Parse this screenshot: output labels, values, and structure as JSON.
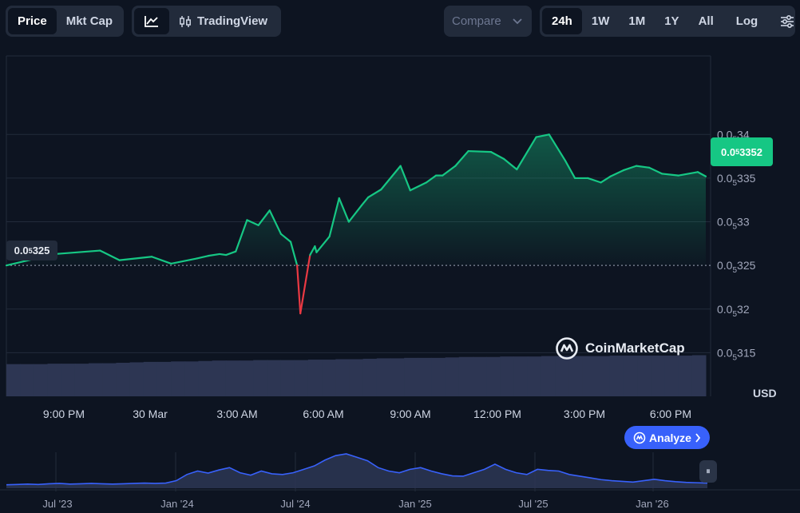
{
  "toolbar": {
    "price_label": "Price",
    "mktcap_label": "Mkt Cap",
    "tradingview_label": "TradingView",
    "compare_label": "Compare",
    "ranges": [
      "24h",
      "1W",
      "1M",
      "1Y",
      "All"
    ],
    "active_range": "24h",
    "log_label": "Log"
  },
  "current_price": {
    "prefix": "0.0",
    "sub": "5",
    "rest": "3352"
  },
  "reference_price": {
    "prefix": "0.0",
    "sub": "5",
    "rest": "325"
  },
  "currency_label": "USD",
  "watermark_text": "CoinMarketCap",
  "analyze_label": "Analyze",
  "colors": {
    "up": "#16c784",
    "down": "#ea3943",
    "accent": "#3861fb",
    "background": "#0d1421",
    "volume": "#2d3653"
  },
  "chart_data": [
    {
      "type": "area",
      "title": "",
      "xlabel": "",
      "ylabel": "USD",
      "ylim": [
        3.1e-06,
        3.49e-06
      ],
      "y_ticks": [
        {
          "prefix": "0.0",
          "sub": "5",
          "rest": "34",
          "value": 3.4e-06
        },
        {
          "prefix": "0.0",
          "sub": "5",
          "rest": "335",
          "value": 3.35e-06
        },
        {
          "prefix": "0.0",
          "sub": "5",
          "rest": "33",
          "value": 3.3e-06
        },
        {
          "prefix": "0.0",
          "sub": "5",
          "rest": "325",
          "value": 3.25e-06
        },
        {
          "prefix": "0.0",
          "sub": "5",
          "rest": "32",
          "value": 3.2e-06
        },
        {
          "prefix": "0.0",
          "sub": "5",
          "rest": "315",
          "value": 3.15e-06
        }
      ],
      "x_ticks": [
        "9:00 PM",
        "30 Mar",
        "3:00 AM",
        "6:00 AM",
        "9:00 AM",
        "12:00 PM",
        "3:00 PM",
        "6:00 PM"
      ],
      "x_hours": [
        0,
        1.5,
        2.9,
        3.5,
        4.5,
        5.1,
        5.9,
        6.25,
        6.6,
        6.8,
        7.1,
        7.45,
        7.8,
        8.15,
        8.5,
        8.8,
        9.0,
        9.1,
        9.4,
        9.55,
        9.6,
        10.0,
        10.3,
        10.6,
        11.0,
        11.2,
        11.6,
        12.2,
        12.5,
        13.0,
        13.3,
        13.5,
        13.9,
        14.3,
        15.0,
        15.4,
        15.8,
        16.4,
        16.8,
        17.3,
        17.6,
        18.0,
        18.4,
        18.7,
        19.1,
        19.5,
        19.9,
        20.3,
        20.8,
        21.4,
        21.65
      ],
      "reference_value": 3.25e-06,
      "series": [
        {
          "values": [
            3.25e-06,
            3.263e-06,
            3.267e-06,
            3.256e-06,
            3.26e-06,
            3.252e-06,
            3.258e-06,
            3.261e-06,
            3.263e-06,
            3.262e-06,
            3.266e-06,
            3.302e-06,
            3.296e-06,
            3.313e-06,
            3.286e-06,
            3.277e-06,
            3.25e-06,
            3.195e-06,
            3.262e-06,
            3.272e-06,
            3.265e-06,
            3.283e-06,
            3.327e-06,
            3.3e-06,
            3.319e-06,
            3.328e-06,
            3.337e-06,
            3.364e-06,
            3.336e-06,
            3.345e-06,
            3.353e-06,
            3.353e-06,
            3.364e-06,
            3.381e-06,
            3.38e-06,
            3.372e-06,
            3.36e-06,
            3.397e-06,
            3.4e-06,
            3.37e-06,
            3.35e-06,
            3.35e-06,
            3.345e-06,
            3.352e-06,
            3.359e-06,
            3.364e-06,
            3.362e-06,
            3.355e-06,
            3.353e-06,
            3.357e-06,
            3.352e-06
          ]
        }
      ],
      "volume_series": [
        0.72,
        0.72,
        0.72,
        0.73,
        0.73,
        0.73,
        0.74,
        0.74,
        0.75,
        0.76,
        0.77,
        0.77,
        0.78,
        0.78,
        0.79,
        0.8,
        0.8,
        0.8,
        0.81,
        0.81,
        0.81,
        0.81,
        0.82,
        0.82,
        0.83,
        0.83,
        0.84,
        0.85,
        0.85,
        0.86,
        0.86,
        0.86,
        0.87,
        0.88,
        0.88,
        0.88,
        0.89,
        0.89,
        0.89,
        0.9,
        0.9,
        0.9,
        0.9,
        0.9,
        0.91,
        0.91,
        0.91,
        0.91,
        0.91,
        0.91,
        0.92
      ]
    },
    {
      "type": "area",
      "title": "",
      "x_ticks": [
        "Jul '23",
        "Jan '24",
        "Jul '24",
        "Jan '25",
        "Jul '25",
        "Jan '26"
      ],
      "series": [
        {
          "values": [
            0.1,
            0.11,
            0.12,
            0.11,
            0.13,
            0.14,
            0.12,
            0.13,
            0.14,
            0.13,
            0.12,
            0.13,
            0.14,
            0.15,
            0.14,
            0.15,
            0.22,
            0.4,
            0.5,
            0.44,
            0.53,
            0.6,
            0.45,
            0.38,
            0.5,
            0.42,
            0.4,
            0.45,
            0.55,
            0.65,
            0.82,
            0.95,
            1.0,
            0.9,
            0.8,
            0.6,
            0.5,
            0.45,
            0.55,
            0.6,
            0.5,
            0.42,
            0.36,
            0.35,
            0.45,
            0.55,
            0.7,
            0.55,
            0.45,
            0.4,
            0.55,
            0.52,
            0.5,
            0.4,
            0.35,
            0.3,
            0.25,
            0.22,
            0.2,
            0.18,
            0.22,
            0.26,
            0.22,
            0.19,
            0.17,
            0.16,
            0.15
          ]
        }
      ]
    }
  ]
}
